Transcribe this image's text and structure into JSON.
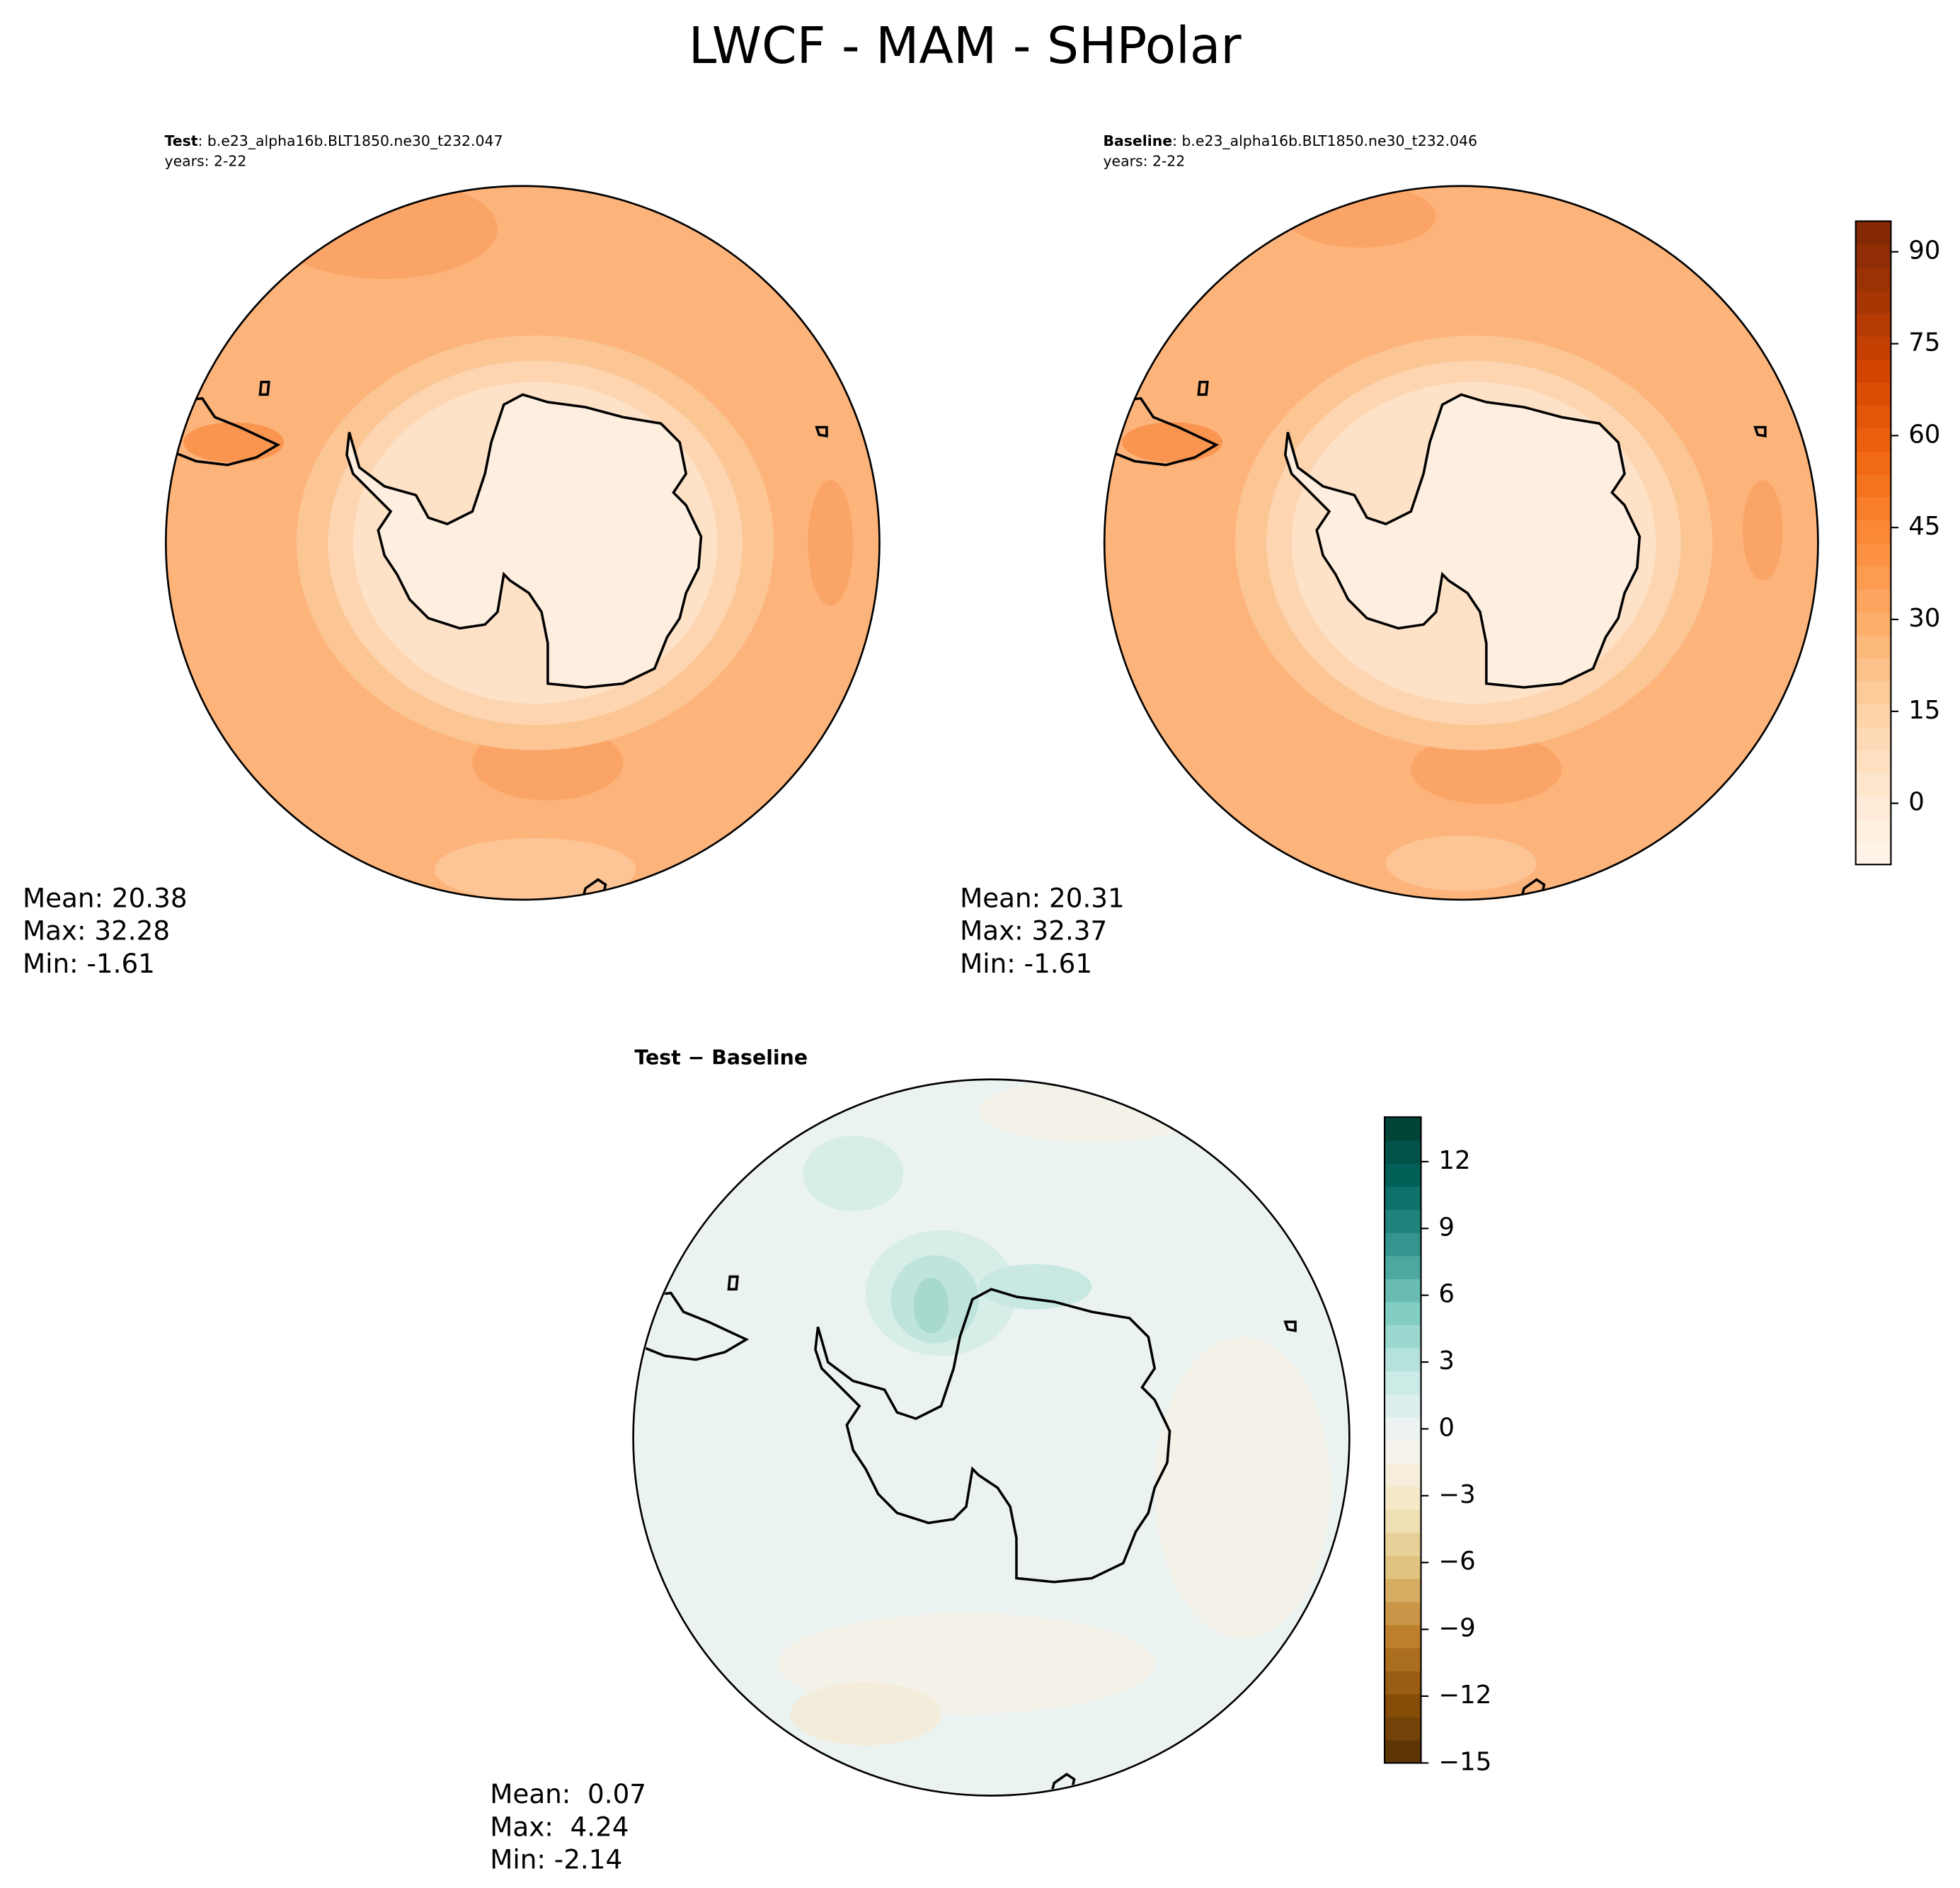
{
  "title": "LWCF - MAM - SHPolar",
  "chart_data": [
    {
      "type": "map",
      "label": "Test",
      "case": ": b.e23_alpha16b.BLT1850.ne30_t232.047",
      "years": "years: 2-22",
      "stats": [
        "Mean: 20.38",
        "Max: 32.28",
        "Min: -1.61"
      ]
    },
    {
      "type": "map",
      "label": "Baseline",
      "case": ": b.e23_alpha16b.BLT1850.ne30_t232.046",
      "years": "years: 2-22",
      "stats": [
        "Mean: 20.31",
        "Max: 32.37",
        "Min: -1.61"
      ],
      "colorbar": {
        "ylim": [
          -10,
          95
        ],
        "yticks": [
          0,
          15,
          30,
          45,
          60,
          75,
          90
        ],
        "colors": [
          "#fff5eb",
          "#fee6ce",
          "#fdd0a2",
          "#fdae6b",
          "#fd8d3c",
          "#f16913",
          "#d94801",
          "#a63603",
          "#7f2704"
        ]
      }
    },
    {
      "type": "map",
      "title": "Test − Baseline",
      "stats": [
        "Mean:  0.07",
        "Max:  4.24",
        "Min: -2.14"
      ],
      "colorbar": {
        "ylim": [
          -15,
          14
        ],
        "yticks": [
          {
            "value": -15,
            "label": "−15"
          },
          {
            "value": -12,
            "label": "−12"
          },
          {
            "value": -9,
            "label": "−9"
          },
          {
            "value": -6,
            "label": "−6"
          },
          {
            "value": -3,
            "label": "−3"
          },
          0,
          3,
          6,
          9,
          12
        ],
        "colors": [
          "#543005",
          "#8c510a",
          "#bf812d",
          "#dfc27d",
          "#f6e8c3",
          "#f5f5f5",
          "#c7eae5",
          "#80cdc1",
          "#35978f",
          "#01665e",
          "#003c30"
        ]
      }
    }
  ]
}
